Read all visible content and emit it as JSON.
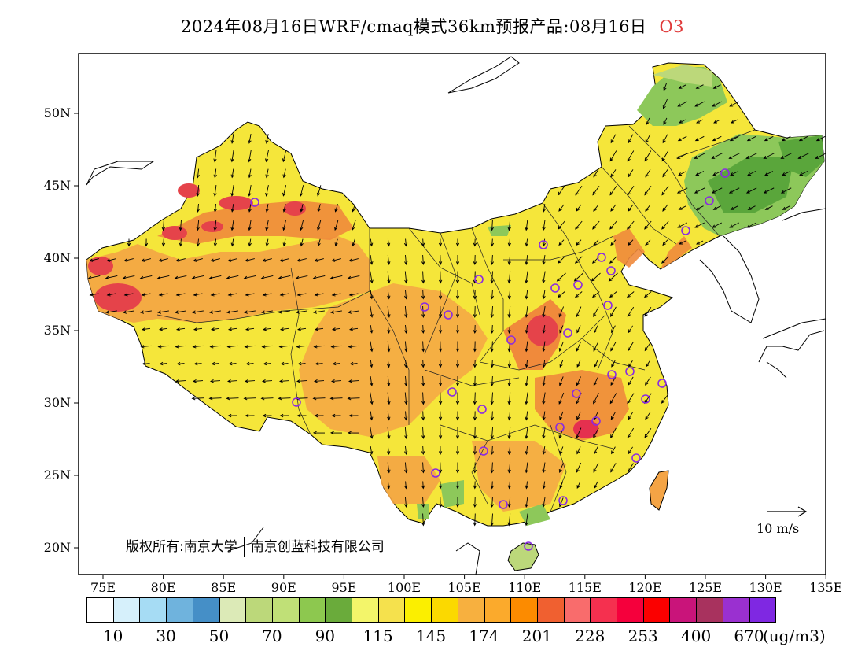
{
  "title": {
    "text": "2024年08月16日WRF/cmaq模式36km预报产品:08月16日",
    "species": "O3"
  },
  "map": {
    "lon_ticks": [
      "75E",
      "80E",
      "85E",
      "90E",
      "95E",
      "100E",
      "105E",
      "110E",
      "115E",
      "120E",
      "125E",
      "130E",
      "135E"
    ],
    "lat_ticks": [
      "50N",
      "45N",
      "40N",
      "35N",
      "30N",
      "25N",
      "20N"
    ],
    "colors": {
      "land_bg": "#f5e63a",
      "orange": "#f4a445",
      "deep_orange": "#ef7f3c",
      "red": "#e5434a",
      "green": "#8dc85a",
      "dark_green": "#5aa63b",
      "coast": "#000000",
      "station": "#8a2be2"
    }
  },
  "copyright": {
    "text1": "版权所有:南京大学",
    "text2": "南京创蓝科技有限公司"
  },
  "wind_reference": {
    "label": "10 m/s"
  },
  "colorbar": {
    "colors": [
      "#ffffff",
      "#d6f0fb",
      "#a6dcf4",
      "#6fb3dd",
      "#458fc7",
      "#dceab7",
      "#bcd87a",
      "#c0e077",
      "#8dc84f",
      "#6aab3b",
      "#f3f56a",
      "#f5e14d",
      "#fbef00",
      "#fbd900",
      "#f7b03f",
      "#fbaa2c",
      "#fc8b00",
      "#f06030",
      "#f96c6c",
      "#f5304f",
      "#f5003c",
      "#fb0000",
      "#c9147a",
      "#a8325e",
      "#9a30d0",
      "#7f28e2"
    ],
    "labels": [
      "10",
      "30",
      "50",
      "70",
      "90",
      "115",
      "145",
      "174",
      "201",
      "228",
      "253",
      "400",
      "670"
    ],
    "unit": "(ug/m3)"
  }
}
